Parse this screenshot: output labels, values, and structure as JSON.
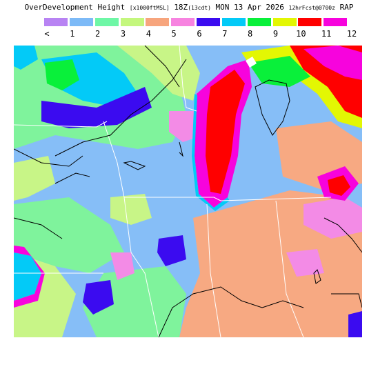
{
  "header": {
    "product": "OverDevelopment Height",
    "units": "[x1000ftMSL]",
    "valid": "18Z",
    "valid_local": "(13cdt)",
    "date": "MON 13 Apr 2026",
    "forecast": "12hrFcst@0700z",
    "model": "RAP"
  },
  "legend": {
    "labels": [
      "<",
      "1",
      "2",
      "3",
      "4",
      "5",
      "6",
      "7",
      "8",
      "9",
      "10",
      "11",
      "12"
    ],
    "colors": [
      "#b883f3",
      "#7dbaf7",
      "#6ef7a6",
      "#c4f77d",
      "#f7a57d",
      "#f783e0",
      "#3b0bf0",
      "#03caf7",
      "#09f03a",
      "#e3f703",
      "#ff0000",
      "#f703dd",
      "#ffffff"
    ]
  },
  "map": {
    "background_colors": {
      "light_blue": "#86bef7",
      "green": "#7ff39c",
      "yellow_green": "#c8f587",
      "salmon": "#f7a982",
      "pink": "#f38be6",
      "blue": "#3b0bf0",
      "cyan": "#03caf7",
      "bright_green": "#09f03a",
      "yellow": "#e3f703",
      "red": "#ff0000",
      "magenta": "#f703dd"
    }
  }
}
